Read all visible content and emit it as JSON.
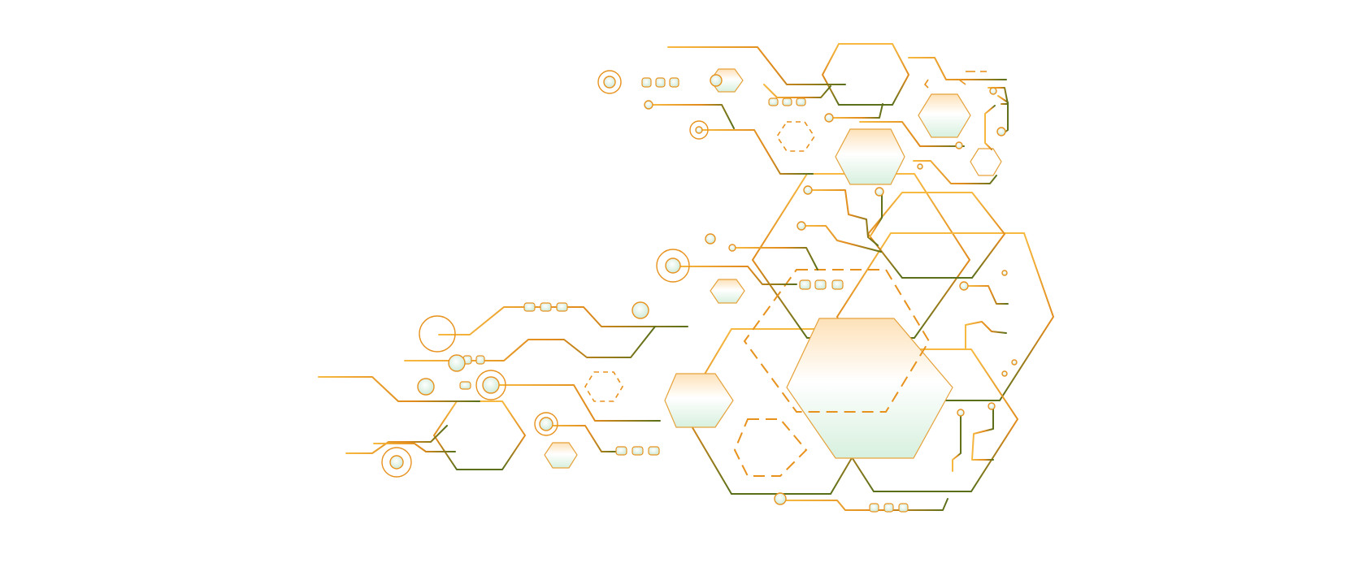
{
  "colors": {
    "background": "#ffffff",
    "amber": "#f5b43a",
    "orange": "#e8921e",
    "olive": "#5a6f1a",
    "mint": "#dff3e6",
    "peach": "#fde1b8"
  },
  "graphic": {
    "subject": "hexagon-circuit-board-line-art"
  }
}
